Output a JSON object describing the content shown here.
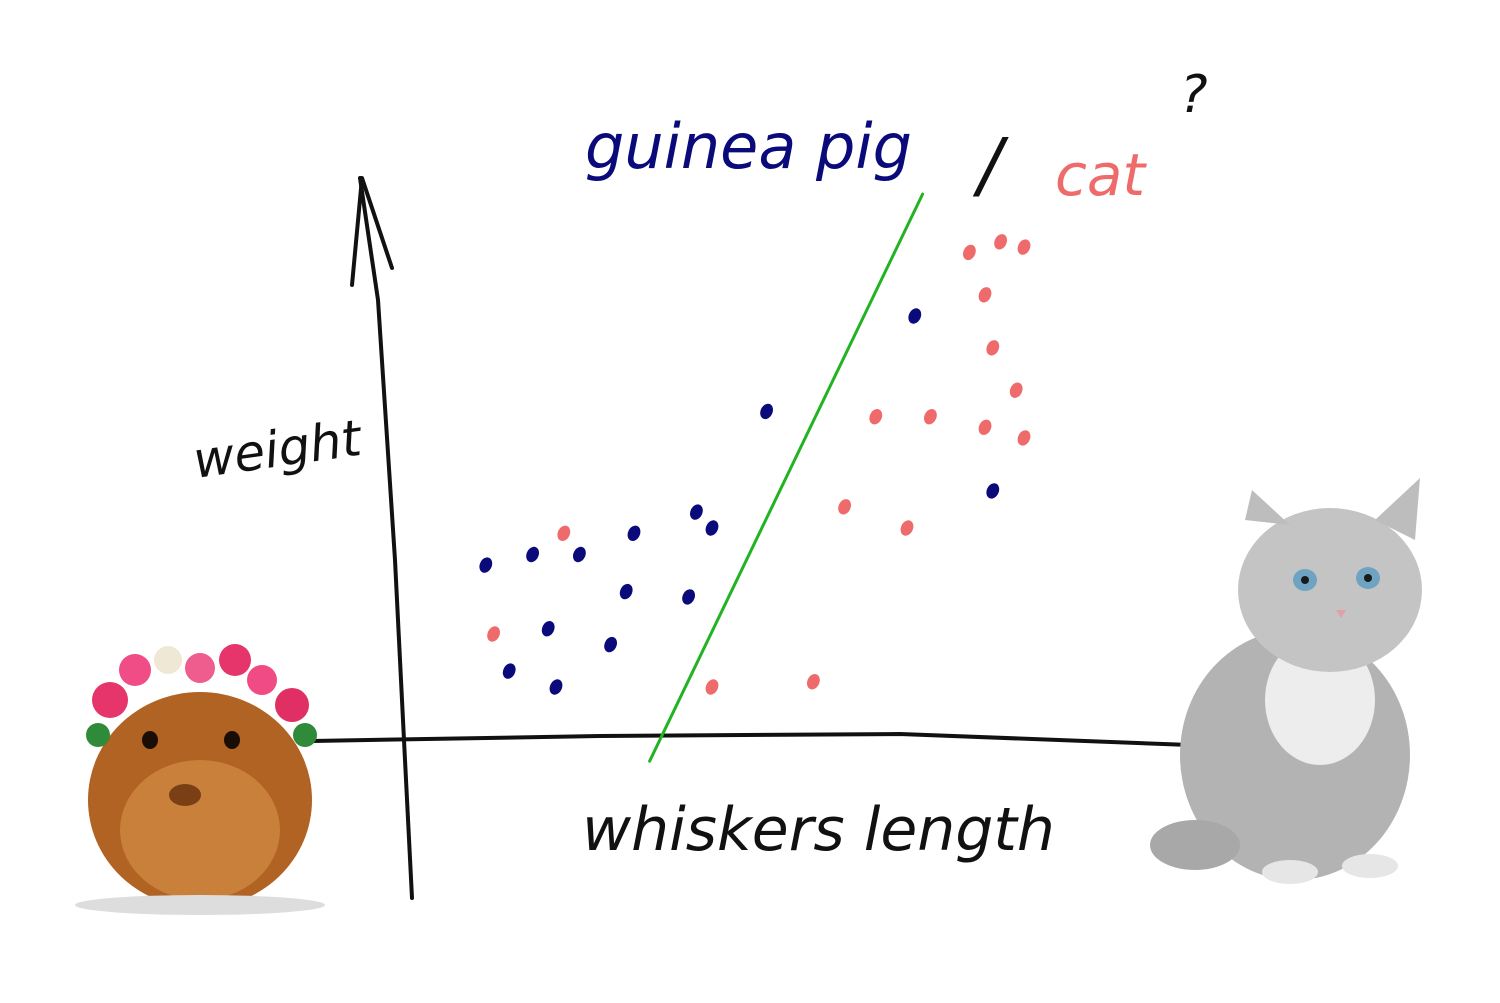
{
  "title": {
    "class_a": "guinea pig",
    "separator": "/",
    "class_b": "cat",
    "question": "?"
  },
  "colors": {
    "class_a": "#0a0a7a",
    "class_b": "#ef6b6b",
    "boundary": "#22b322",
    "axes": "#111111"
  },
  "chart_data": {
    "type": "scatter",
    "xlabel": "whiskers length",
    "ylabel": "weight",
    "xlim": [
      0,
      10
    ],
    "ylim": [
      0,
      10
    ],
    "grid": false,
    "series": [
      {
        "name": "guinea pig",
        "color": "#0a0a7a",
        "points": [
          [
            1.1,
            3.3
          ],
          [
            1.7,
            3.5
          ],
          [
            2.3,
            3.5
          ],
          [
            3.0,
            3.9
          ],
          [
            3.8,
            4.3
          ],
          [
            4.0,
            4.0
          ],
          [
            2.9,
            2.8
          ],
          [
            3.7,
            2.7
          ],
          [
            1.9,
            2.1
          ],
          [
            2.7,
            1.8
          ],
          [
            1.4,
            1.3
          ],
          [
            2.0,
            1.0
          ],
          [
            4.7,
            6.2
          ],
          [
            6.6,
            8.0
          ],
          [
            7.6,
            4.7
          ]
        ]
      },
      {
        "name": "cat",
        "color": "#ef6b6b",
        "points": [
          [
            2.1,
            3.9
          ],
          [
            1.2,
            2.0
          ],
          [
            4.0,
            1.0
          ],
          [
            5.3,
            1.1
          ],
          [
            5.7,
            4.4
          ],
          [
            6.1,
            6.1
          ],
          [
            6.8,
            6.1
          ],
          [
            6.5,
            4.0
          ],
          [
            7.3,
            9.2
          ],
          [
            7.7,
            9.4
          ],
          [
            8.0,
            9.3
          ],
          [
            7.5,
            8.4
          ],
          [
            7.6,
            7.4
          ],
          [
            7.9,
            6.6
          ],
          [
            7.5,
            5.9
          ],
          [
            8.0,
            5.7
          ]
        ]
      }
    ],
    "decision_boundary": [
      [
        3.2,
        -0.4
      ],
      [
        6.7,
        10.3
      ]
    ]
  }
}
